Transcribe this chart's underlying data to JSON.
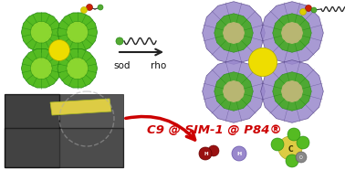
{
  "title": "C9 @ SIM-1 @ P84®",
  "sod_label": "sod",
  "rho_label": "rho",
  "bg_color": "#ffffff",
  "title_color": "#cc0000",
  "title_fontsize": 9.5,
  "arrow_color": "#cc0000",
  "label_color": "#111111",
  "label_fontsize": 7.5,
  "sod_green_outer": "#55bb22",
  "sod_green_inner": "#99dd33",
  "sod_yellow": "#eedd00",
  "rho_green": "#44aa22",
  "rho_purple": "#9988cc",
  "rho_yellow": "#eedd00",
  "rho_tan": "#ddbb88",
  "h2_color": "#aa1111",
  "h_color": "#9988cc",
  "reaction_arrow_color": "#222222",
  "reagent_dot_color": "#55aa33",
  "wavy_color": "#222222",
  "sem_bg": "#555555",
  "sem_dark": "#333333",
  "mem_color": "#ddcc44"
}
